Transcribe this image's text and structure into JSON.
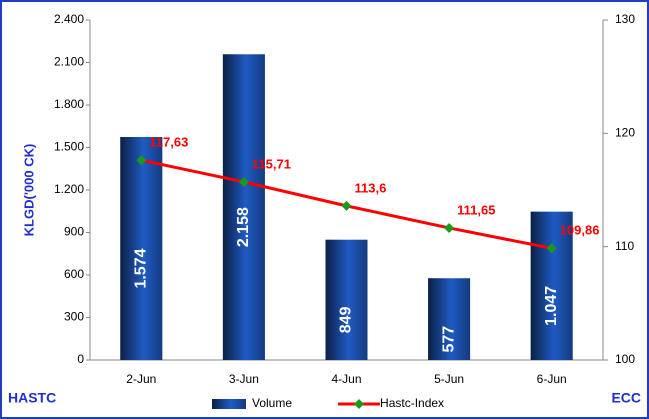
{
  "chart_data": {
    "type": "bar",
    "y_label": "KLGD('000 CK)",
    "left_note": "HASTC",
    "right_note": "ECC",
    "categories": [
      "2-Jun",
      "3-Jun",
      "4-Jun",
      "5-Jun",
      "6-Jun"
    ],
    "series": [
      {
        "name": "Volume",
        "type": "bar",
        "color": "#1f5bc4",
        "values": [
          1574,
          2158,
          849,
          577,
          1047
        ],
        "value_labels": [
          "1.574",
          "2.158",
          "849",
          "577",
          "1.047"
        ]
      },
      {
        "name": "Hastc-Index",
        "type": "line",
        "axis": "y2",
        "color": "#ff0000",
        "marker_color": "#1a9a1a",
        "values": [
          117.63,
          115.71,
          113.6,
          111.65,
          109.86
        ],
        "value_labels": [
          "117,63",
          "115,71",
          "113,6",
          "111,65",
          "109,86"
        ]
      }
    ],
    "ylim": [
      0,
      2400
    ],
    "yticks": [
      0,
      {
        "value": 300,
        "label": "300"
      },
      600,
      900,
      {
        "value": 1200,
        "label": "1.200"
      },
      {
        "value": 1500,
        "label": "1.500"
      },
      {
        "value": 1800,
        "label": "1.800"
      },
      {
        "value": 2100,
        "label": "2.100"
      },
      {
        "value": 2400,
        "label": "2.400"
      }
    ],
    "y2lim": [
      100,
      130
    ],
    "y2ticks": [
      100,
      110,
      120,
      130
    ],
    "legend": "bottom"
  }
}
